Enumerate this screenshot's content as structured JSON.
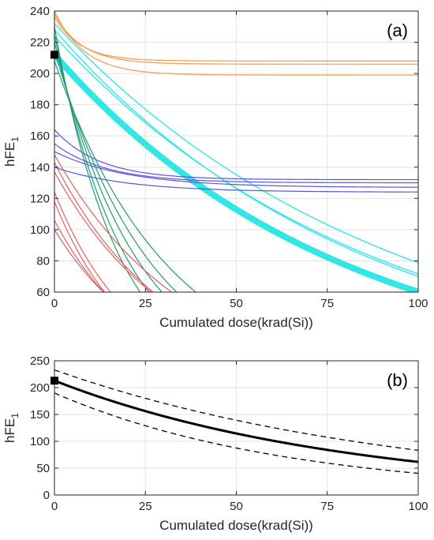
{
  "colors": {
    "orange": "#f0a050",
    "cyan": "#33e6e6",
    "blue": "#5555dd",
    "green": "#229977",
    "red": "#e06060",
    "black": "#000000"
  },
  "chart_data": [
    {
      "type": "line",
      "panel_label": "(a)",
      "xlabel": "Cumulated dose(krad(Si))",
      "ylabel": "hFE",
      "ylabel_sub": "1",
      "xlim": [
        0,
        100
      ],
      "ylim": [
        60,
        240
      ],
      "xticks": [
        0,
        25,
        50,
        75,
        100
      ],
      "yticks": [
        60,
        80,
        100,
        120,
        140,
        160,
        180,
        200,
        220,
        240
      ],
      "grid": true,
      "marker_point": {
        "x": 0,
        "y": 212,
        "shape": "square"
      },
      "series": [
        {
          "color_key": "orange",
          "width": 1.3,
          "model": "exp_floor",
          "y0": 240,
          "floor": 199,
          "k": 0.12
        },
        {
          "color_key": "orange",
          "width": 1.3,
          "model": "exp_floor",
          "y0": 238,
          "floor": 206,
          "k": 0.13
        },
        {
          "color_key": "orange",
          "width": 1.3,
          "model": "exp_floor",
          "y0": 236,
          "floor": 208,
          "k": 0.14
        },
        {
          "color_key": "cyan",
          "width": 8,
          "model": "exp",
          "y0": 212,
          "k": 0.0126
        },
        {
          "color_key": "cyan",
          "width": 1.4,
          "model": "exp",
          "y0": 232,
          "k": 0.0108
        },
        {
          "color_key": "cyan",
          "width": 1.4,
          "model": "exp",
          "y0": 228,
          "k": 0.0118
        },
        {
          "color_key": "cyan",
          "width": 1.4,
          "model": "exp",
          "y0": 224,
          "k": 0.0114
        },
        {
          "color_key": "blue",
          "width": 1.2,
          "model": "exp_floor",
          "y0": 164,
          "floor": 132,
          "k": 0.08
        },
        {
          "color_key": "blue",
          "width": 1.2,
          "model": "exp_floor",
          "y0": 155,
          "floor": 130,
          "k": 0.07
        },
        {
          "color_key": "blue",
          "width": 1.2,
          "model": "exp_floor",
          "y0": 150,
          "floor": 127,
          "k": 0.05
        },
        {
          "color_key": "blue",
          "width": 1.2,
          "model": "exp_floor",
          "y0": 140,
          "floor": 124,
          "k": 0.05
        },
        {
          "color_key": "green",
          "width": 1.2,
          "model": "exp",
          "y0": 230,
          "k": 0.057
        },
        {
          "color_key": "green",
          "width": 1.2,
          "model": "exp",
          "y0": 225,
          "k": 0.051
        },
        {
          "color_key": "green",
          "width": 1.2,
          "model": "exp",
          "y0": 220,
          "k": 0.044
        },
        {
          "color_key": "green",
          "width": 1.2,
          "model": "exp",
          "y0": 215,
          "k": 0.038
        },
        {
          "color_key": "green",
          "width": 1.2,
          "model": "exp",
          "y0": 208,
          "k": 0.032
        },
        {
          "color_key": "red",
          "width": 1.2,
          "model": "exp",
          "y0": 148,
          "k": 0.028
        },
        {
          "color_key": "red",
          "width": 1.2,
          "model": "exp",
          "y0": 143,
          "k": 0.032
        },
        {
          "color_key": "red",
          "width": 1.2,
          "model": "exp",
          "y0": 137,
          "k": 0.031
        },
        {
          "color_key": "red",
          "width": 1.2,
          "model": "exp",
          "y0": 124,
          "k": 0.047
        },
        {
          "color_key": "red",
          "width": 1.2,
          "model": "exp",
          "y0": 118,
          "k": 0.049
        },
        {
          "color_key": "red",
          "width": 1.2,
          "model": "exp",
          "y0": 106,
          "k": 0.042
        },
        {
          "color_key": "red",
          "width": 1.2,
          "model": "exp",
          "y0": 100,
          "k": 0.038
        }
      ]
    },
    {
      "type": "line",
      "panel_label": "(b)",
      "xlabel": "Cumulated dose(krad(Si))",
      "ylabel": "hFE",
      "ylabel_sub": "1",
      "xlim": [
        0,
        100
      ],
      "ylim": [
        0,
        250
      ],
      "xticks": [
        0,
        25,
        50,
        75,
        100
      ],
      "yticks": [
        0,
        50,
        100,
        150,
        200,
        250
      ],
      "grid": true,
      "marker_point": {
        "x": 0,
        "y": 213,
        "shape": "square"
      },
      "series": [
        {
          "color_key": "black",
          "width": 3,
          "dash": "",
          "model": "exp",
          "y0": 213,
          "k": 0.0124
        },
        {
          "color_key": "black",
          "width": 1.3,
          "dash": "7,5",
          "model": "exp",
          "y0": 233,
          "k": 0.0103
        },
        {
          "color_key": "black",
          "width": 1.3,
          "dash": "7,5",
          "model": "exp",
          "y0": 190,
          "k": 0.0155
        }
      ]
    }
  ]
}
